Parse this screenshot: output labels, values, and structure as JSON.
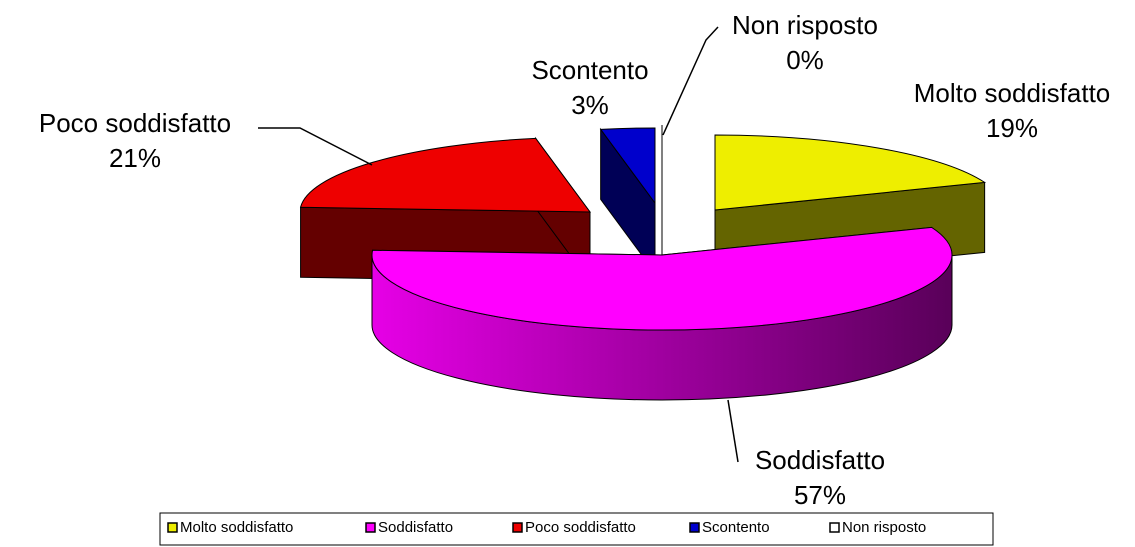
{
  "chart_data": {
    "type": "pie",
    "categories": [
      "Molto soddisfatto",
      "Soddisfatto",
      "Poco soddisfatto",
      "Scontento",
      "Non risposto"
    ],
    "values": [
      19,
      57,
      21,
      3,
      0
    ],
    "value_labels": [
      "19%",
      "57%",
      "21%",
      "3%",
      "0%"
    ],
    "colors": [
      "#eeee00",
      "#ff00ff",
      "#ee0000",
      "#0000cc",
      "#ffffff"
    ],
    "legend": "bottom"
  }
}
